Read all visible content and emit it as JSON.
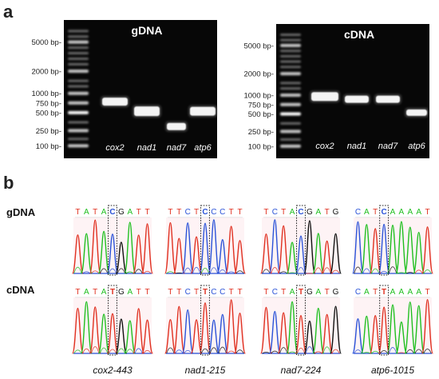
{
  "panel_a": {
    "label": "a",
    "gels": [
      {
        "title": "gDNA",
        "ladder_labels": [
          "5000 bp-",
          "2000 bp-",
          "1000 bp-",
          "750 bp-",
          "500 bp-",
          "250 bp-",
          "100 bp-"
        ],
        "lanes": [
          "cox2",
          "nad1",
          "nad7",
          "atp6"
        ]
      },
      {
        "title": "cDNA",
        "ladder_labels": [
          "5000 bp-",
          "2000 bp-",
          "1000 bp-",
          "750 bp-",
          "500 bp-",
          "250 bp-",
          "100 bp-"
        ],
        "lanes": [
          "cox2",
          "nad1",
          "nad7",
          "atp6"
        ]
      }
    ]
  },
  "panel_b": {
    "label": "b",
    "row_labels": [
      "gDNA",
      "cDNA"
    ],
    "sites": [
      {
        "name": "cox2-443",
        "gdna": [
          "T",
          "A",
          "T",
          "A",
          "C",
          "G",
          "A",
          "T",
          "T"
        ],
        "cdna": [
          "T",
          "A",
          "T",
          "A",
          "T",
          "G",
          "A",
          "T",
          "T"
        ],
        "edit_index": 4
      },
      {
        "name": "nad1-215",
        "gdna": [
          "T",
          "T",
          "C",
          "T",
          "C",
          "C",
          "C",
          "T",
          "T"
        ],
        "cdna": [
          "T",
          "T",
          "C",
          "T",
          "T",
          "C",
          "C",
          "T",
          "T"
        ],
        "edit_index": 4
      },
      {
        "name": "nad7-224",
        "gdna": [
          "T",
          "C",
          "T",
          "A",
          "C",
          "G",
          "A",
          "T",
          "G"
        ],
        "cdna": [
          "T",
          "C",
          "T",
          "A",
          "T",
          "G",
          "A",
          "T",
          "G"
        ],
        "edit_index": 4
      },
      {
        "name": "atp6-1015",
        "gdna": [
          "C",
          "A",
          "T",
          "C",
          "A",
          "A",
          "A",
          "A",
          "T"
        ],
        "cdna": [
          "C",
          "A",
          "T",
          "T",
          "A",
          "A",
          "A",
          "A",
          "T"
        ],
        "edit_index": 3
      }
    ],
    "base_colors": {
      "A": "#1fbf1f",
      "T": "#e03020",
      "C": "#2a52d8",
      "G": "#111111"
    }
  }
}
